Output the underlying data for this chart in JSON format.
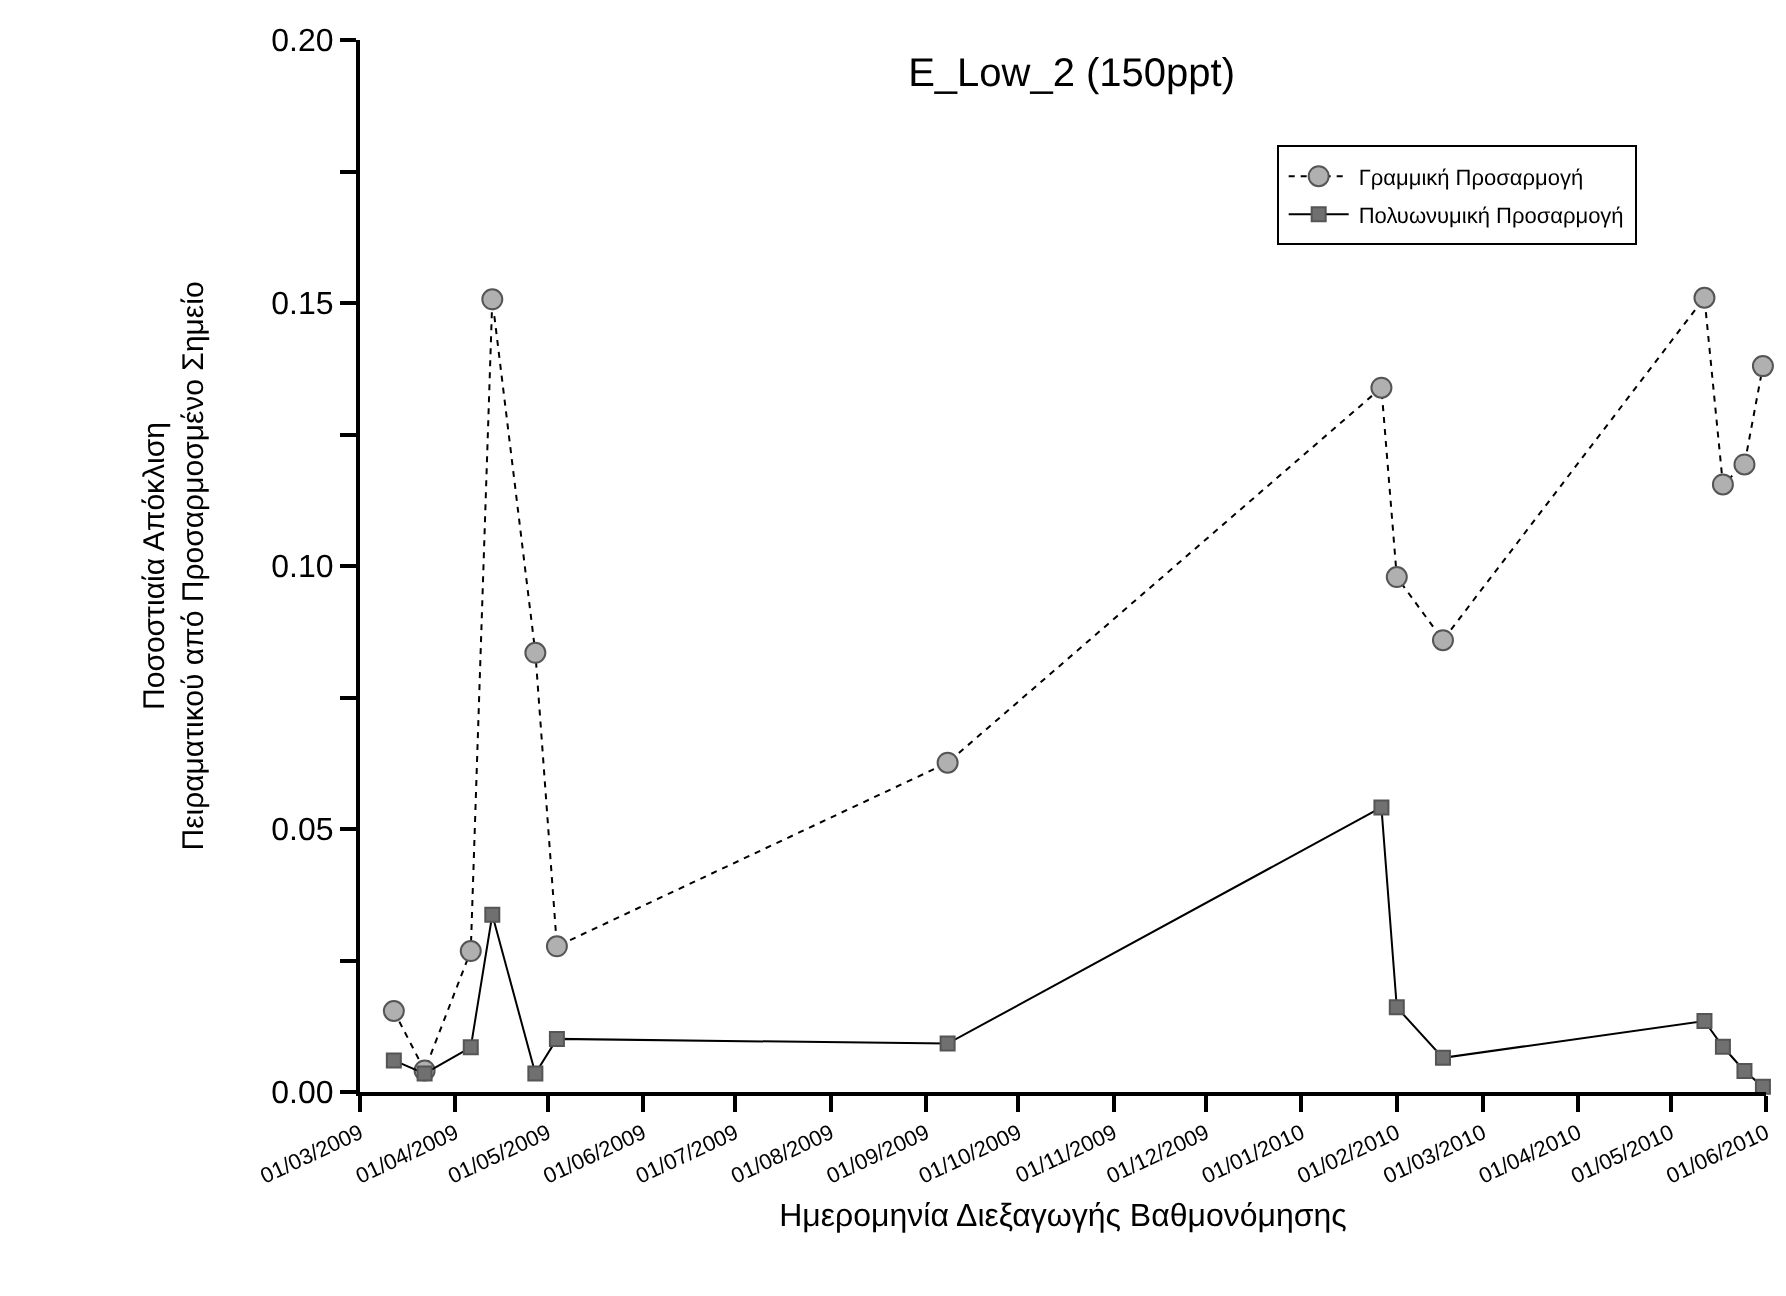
{
  "chart_data": {
    "type": "line",
    "title": "E_Low_2 (150ppt)",
    "xlabel": "Ημερομηνία Διεξαγωγής Βαθμονόμησης",
    "ylabel": "Ποσοστιαία Απόκλιση\nΠειραματικού από Προσαρμοσμένο Σημείο",
    "x": [
      "2009-03-12",
      "2009-03-22",
      "2009-04-06",
      "2009-04-13",
      "2009-04-27",
      "2009-05-04",
      "2009-09-08",
      "2010-01-27",
      "2010-02-01",
      "2010-02-16",
      "2010-05-12",
      "2010-05-18",
      "2010-05-25",
      "2010-05-31"
    ],
    "series": [
      {
        "name": "Γραμμική Προσαρμογή",
        "color": "#b0b0b0",
        "marker": "circle",
        "line_style": "dotted",
        "values": [
          0.0154,
          0.0041,
          0.0268,
          0.1507,
          0.0835,
          0.0277,
          0.0626,
          0.1339,
          0.0979,
          0.0859,
          0.151,
          0.1155,
          0.1193,
          0.138
        ]
      },
      {
        "name": "Πολυωνυμική Προσαρμογή",
        "color": "#707070",
        "marker": "square",
        "line_style": "solid",
        "values": [
          0.006,
          0.0035,
          0.0085,
          0.0337,
          0.0035,
          0.0101,
          0.0092,
          0.0541,
          0.0161,
          0.0065,
          0.0135,
          0.0086,
          0.004,
          0.001
        ]
      }
    ],
    "xlim": [
      "2009-03-01",
      "2010-06-01"
    ],
    "xticks": [
      {
        "value": "2009-03-01",
        "label": "01/03/2009"
      },
      {
        "value": "2009-04-01",
        "label": "01/04/2009"
      },
      {
        "value": "2009-05-01",
        "label": "01/05/2009"
      },
      {
        "value": "2009-06-01",
        "label": "01/06/2009"
      },
      {
        "value": "2009-07-01",
        "label": "01/07/2009"
      },
      {
        "value": "2009-08-01",
        "label": "01/08/2009"
      },
      {
        "value": "2009-09-01",
        "label": "01/09/2009"
      },
      {
        "value": "2009-10-01",
        "label": "01/10/2009"
      },
      {
        "value": "2009-11-01",
        "label": "01/11/2009"
      },
      {
        "value": "2009-12-01",
        "label": "01/12/2009"
      },
      {
        "value": "2010-01-01",
        "label": "01/01/2010"
      },
      {
        "value": "2010-02-01",
        "label": "01/02/2010"
      },
      {
        "value": "2010-03-01",
        "label": "01/03/2010"
      },
      {
        "value": "2010-04-01",
        "label": "01/04/2010"
      },
      {
        "value": "2010-05-01",
        "label": "01/05/2010"
      },
      {
        "value": "2010-06-01",
        "label": "01/06/2010"
      }
    ],
    "ylim": [
      0,
      0.2
    ],
    "yticks": [
      {
        "value": 0,
        "label": "0.00"
      },
      {
        "value": 0.025,
        "label": null
      },
      {
        "value": 0.05,
        "label": "0.05"
      },
      {
        "value": 0.075,
        "label": null
      },
      {
        "value": 0.1,
        "label": "0.10"
      },
      {
        "value": 0.125,
        "label": null
      },
      {
        "value": 0.15,
        "label": "0.15"
      },
      {
        "value": 0.175,
        "label": null
      },
      {
        "value": 0.2,
        "label": "0.20"
      }
    ],
    "grid": false,
    "legend": "top right"
  }
}
